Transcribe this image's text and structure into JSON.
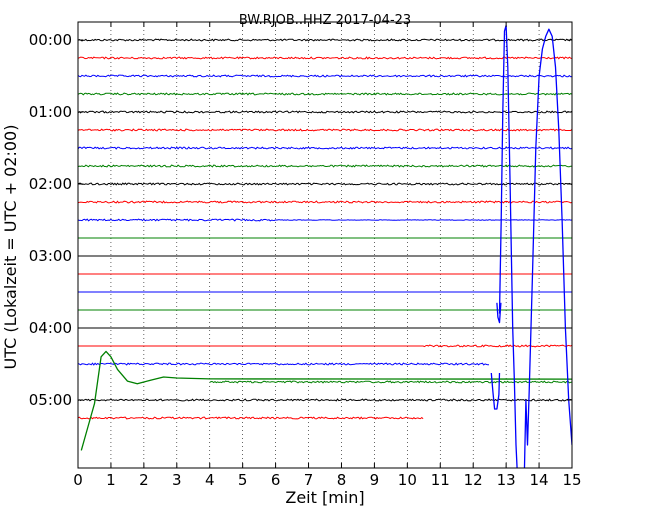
{
  "chart_data": {
    "type": "line",
    "title": "BW.RJOB..HHZ 2017-04-23",
    "xlabel": "Zeit  [min]",
    "ylabel": "UTC (Lokalzeit = UTC + 02:00)",
    "xlim": [
      0,
      15
    ],
    "x_ticks": [
      0,
      1,
      2,
      3,
      4,
      5,
      6,
      7,
      8,
      9,
      10,
      11,
      12,
      13,
      14,
      15
    ],
    "x_tick_labels": [
      "0",
      "1",
      "2",
      "3",
      "4",
      "5",
      "6",
      "7",
      "8",
      "9",
      "10",
      "11",
      "12",
      "13",
      "14",
      "15"
    ],
    "y_tick_labels": [
      "00:00",
      "01:00",
      "02:00",
      "03:00",
      "04:00",
      "05:00"
    ],
    "y_tick_rows": [
      0,
      4,
      8,
      12,
      16,
      20
    ],
    "row_count": 24,
    "rows_per_hour": 4,
    "minutes_per_row": 15,
    "grid": "vertical dotted",
    "color_cycle": [
      "#000000",
      "#ff0000",
      "#0000ff",
      "#008000"
    ],
    "rows": [
      {
        "label": "00:00",
        "color": "#000000",
        "state": "noisy",
        "start_min": 0,
        "end_min": 15
      },
      {
        "label": "00:15",
        "color": "#ff0000",
        "state": "noisy",
        "start_min": 0,
        "end_min": 15
      },
      {
        "label": "00:30",
        "color": "#0000ff",
        "state": "noisy",
        "start_min": 0,
        "end_min": 15
      },
      {
        "label": "00:45",
        "color": "#008000",
        "state": "noisy",
        "start_min": 0,
        "end_min": 15
      },
      {
        "label": "01:00",
        "color": "#000000",
        "state": "noisy",
        "start_min": 0,
        "end_min": 15
      },
      {
        "label": "01:15",
        "color": "#ff0000",
        "state": "noisy",
        "start_min": 0,
        "end_min": 15
      },
      {
        "label": "01:30",
        "color": "#0000ff",
        "state": "noisy",
        "start_min": 0,
        "end_min": 15
      },
      {
        "label": "01:45",
        "color": "#008000",
        "state": "noisy",
        "start_min": 0,
        "end_min": 15
      },
      {
        "label": "02:00",
        "color": "#000000",
        "state": "noisy",
        "start_min": 0,
        "end_min": 15
      },
      {
        "label": "02:15",
        "color": "#ff0000",
        "state": "noisy",
        "start_min": 0,
        "end_min": 15
      },
      {
        "label": "02:30",
        "color": "#0000ff",
        "state": "noisy_then_flat",
        "noisy_until_min": 6,
        "start_min": 0,
        "end_min": 15
      },
      {
        "label": "02:45",
        "color": "#008000",
        "state": "flat",
        "start_min": 0,
        "end_min": 15
      },
      {
        "label": "03:00",
        "color": "#000000",
        "state": "flat",
        "start_min": 0,
        "end_min": 15
      },
      {
        "label": "03:15",
        "color": "#ff0000",
        "state": "flat",
        "start_min": 0,
        "end_min": 15
      },
      {
        "label": "03:30",
        "color": "#0000ff",
        "state": "flat",
        "start_min": 0,
        "end_min": 15
      },
      {
        "label": "03:45",
        "color": "#008000",
        "state": "flat",
        "start_min": 0,
        "end_min": 15
      },
      {
        "label": "04:00",
        "color": "#000000",
        "state": "flat",
        "start_min": 0,
        "end_min": 15
      },
      {
        "label": "04:15",
        "color": "#ff0000",
        "state": "flat_then_noisy",
        "noisy_from_min": 10.5,
        "start_min": 0,
        "end_min": 15
      },
      {
        "label": "04:30",
        "color": "#0000ff",
        "state": "noisy",
        "start_min": 0,
        "end_min": 12.5
      },
      {
        "label": "04:45",
        "color": "#008000",
        "state": "transient_then_noisy",
        "start_min": 0,
        "end_min": 15
      },
      {
        "label": "05:00",
        "color": "#000000",
        "state": "noisy",
        "start_min": 0,
        "end_min": 15
      },
      {
        "label": "05:15",
        "color": "#ff0000",
        "state": "noisy",
        "start_min": 0,
        "end_min": 10.5
      }
    ],
    "transients": [
      {
        "color": "#008000",
        "points": [
          [
            0.1,
            22.8
          ],
          [
            0.3,
            21.5
          ],
          [
            0.5,
            20.2
          ],
          [
            0.7,
            17.6
          ],
          [
            0.85,
            17.3
          ],
          [
            1.0,
            17.6
          ],
          [
            1.2,
            18.3
          ],
          [
            1.5,
            18.95
          ],
          [
            1.8,
            19.1
          ],
          [
            2.2,
            18.9
          ],
          [
            2.6,
            18.72
          ],
          [
            3.0,
            18.78
          ],
          [
            4.0,
            18.83
          ],
          [
            15.0,
            18.84
          ]
        ]
      },
      {
        "color": "#0000ff",
        "points": [
          [
            12.55,
            18.5
          ],
          [
            12.6,
            19.6
          ],
          [
            12.65,
            20.5
          ],
          [
            12.72,
            20.5
          ],
          [
            12.78,
            19.7
          ],
          [
            12.8,
            18.5
          ]
        ]
      },
      {
        "color": "#0000ff",
        "points": [
          [
            12.72,
            14.6
          ],
          [
            12.75,
            15.4
          ],
          [
            12.8,
            15.7
          ],
          [
            12.83,
            14.9
          ],
          [
            12.84,
            14.6
          ]
        ]
      },
      {
        "color": "#0000ff",
        "points": [
          [
            12.8,
            15.2
          ],
          [
            12.85,
            10.0
          ],
          [
            12.9,
            4.0
          ],
          [
            12.95,
            -0.5
          ],
          [
            13.0,
            -0.8
          ],
          [
            13.05,
            1.5
          ],
          [
            13.12,
            8.0
          ],
          [
            13.2,
            16.0
          ],
          [
            13.25,
            19.0
          ],
          [
            13.3,
            22.5
          ],
          [
            13.35,
            24.5
          ]
        ]
      },
      {
        "color": "#0000ff",
        "points": [
          [
            13.55,
            24.5
          ],
          [
            13.6,
            20.0
          ],
          [
            13.65,
            22.5
          ],
          [
            13.7,
            19.5
          ],
          [
            13.8,
            13.0
          ],
          [
            13.9,
            6.0
          ],
          [
            14.0,
            2.0
          ],
          [
            14.1,
            0.5
          ],
          [
            14.2,
            -0.2
          ],
          [
            14.3,
            -0.6
          ],
          [
            14.4,
            -0.2
          ],
          [
            14.5,
            1.5
          ],
          [
            14.6,
            5.0
          ],
          [
            14.7,
            10.0
          ],
          [
            14.8,
            16.0
          ],
          [
            14.9,
            20.0
          ],
          [
            15.0,
            22.5
          ]
        ]
      }
    ]
  }
}
